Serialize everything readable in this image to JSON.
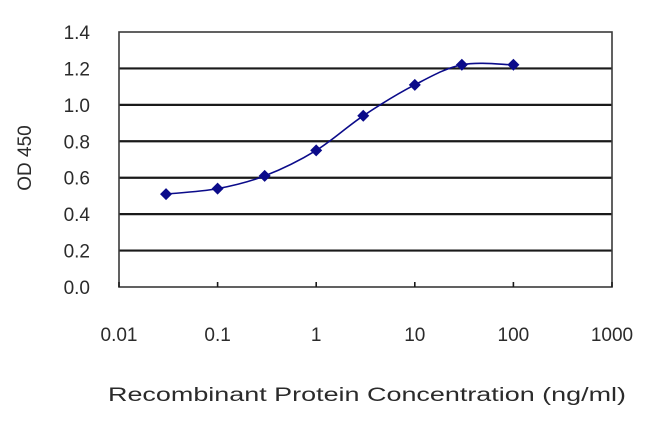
{
  "chart_data": {
    "type": "line",
    "title": "",
    "xlabel": "Recombinant Protein Concentration (ng/ml)",
    "ylabel": "OD 450",
    "xscale": "log",
    "xlim": [
      0.01,
      1000
    ],
    "ylim": [
      0.0,
      1.4
    ],
    "x_ticks": [
      0.01,
      0.1,
      1,
      10,
      100,
      1000
    ],
    "x_tick_labels": [
      "0.01",
      "0.1",
      "1",
      "10",
      "100",
      "1000"
    ],
    "y_ticks": [
      0.0,
      0.2,
      0.4,
      0.6,
      0.8,
      1.0,
      1.2,
      1.4
    ],
    "y_tick_labels": [
      "0.0",
      "0.2",
      "0.4",
      "0.6",
      "0.8",
      "1.0",
      "1.2",
      "1.4"
    ],
    "grid": {
      "horizontal": true,
      "vertical": false
    },
    "legend": null,
    "series": [
      {
        "name": "OD 450",
        "color": "#0b0b8a",
        "marker": "diamond",
        "x": [
          0.03,
          0.1,
          0.3,
          1,
          3,
          10,
          30,
          100
        ],
        "values": [
          0.51,
          0.54,
          0.61,
          0.75,
          0.94,
          1.11,
          1.22,
          1.22
        ]
      }
    ]
  }
}
